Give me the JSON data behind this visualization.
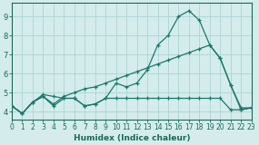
{
  "line1": {
    "x": [
      0,
      1,
      2,
      3,
      4,
      5,
      6,
      7,
      8,
      9,
      10,
      11,
      12,
      13,
      14,
      15,
      16,
      17,
      18,
      19,
      20,
      21,
      22,
      23
    ],
    "y": [
      4.3,
      3.9,
      4.5,
      4.9,
      4.8,
      4.7,
      4.7,
      4.3,
      4.4,
      4.7,
      5.5,
      5.3,
      5.5,
      6.2,
      7.5,
      8.0,
      9.0,
      9.3,
      8.8,
      7.5,
      6.8,
      5.4,
      4.1,
      4.2
    ],
    "color": "#1a7a6a",
    "marker": "+"
  },
  "line2": {
    "x": [
      0,
      1,
      2,
      3,
      4,
      5,
      6,
      7,
      8,
      9,
      10,
      11,
      12,
      13,
      14,
      15,
      16,
      17,
      18,
      19,
      20,
      21,
      22,
      23
    ],
    "y": [
      4.3,
      3.9,
      4.5,
      4.8,
      4.4,
      4.8,
      5.0,
      5.2,
      5.3,
      5.5,
      5.7,
      5.9,
      6.1,
      6.3,
      6.5,
      6.7,
      6.9,
      7.1,
      7.3,
      7.5,
      6.8,
      5.4,
      4.2,
      4.2
    ],
    "color": "#1a7a6a",
    "marker": "+"
  },
  "line3": {
    "x": [
      0,
      1,
      2,
      3,
      4,
      5,
      6,
      7,
      8,
      9,
      10,
      11,
      12,
      13,
      14,
      15,
      16,
      17,
      18,
      19,
      20,
      21,
      22,
      23
    ],
    "y": [
      4.3,
      3.9,
      4.5,
      4.8,
      4.3,
      4.7,
      4.7,
      4.3,
      4.4,
      4.7,
      4.7,
      4.7,
      4.7,
      4.7,
      4.7,
      4.7,
      4.7,
      4.7,
      4.7,
      4.7,
      4.7,
      4.1,
      4.1,
      4.2
    ],
    "color": "#1a7a6a",
    "marker": "+"
  },
  "bg_color": "#d4ecec",
  "grid_color": "#aed4d4",
  "axis_color": "#1a6b5a",
  "text_color": "#1a6b5a",
  "xlabel": "Humidex (Indice chaleur)",
  "xlim": [
    0,
    23
  ],
  "ylim": [
    3.6,
    9.7
  ],
  "yticks": [
    4,
    5,
    6,
    7,
    8,
    9
  ],
  "xticks": [
    0,
    1,
    2,
    3,
    4,
    5,
    6,
    7,
    8,
    9,
    10,
    11,
    12,
    13,
    14,
    15,
    16,
    17,
    18,
    19,
    20,
    21,
    22,
    23
  ],
  "tick_fontsize": 5.5,
  "xlabel_fontsize": 6.5,
  "linewidth": 0.9,
  "markersize": 3.5
}
